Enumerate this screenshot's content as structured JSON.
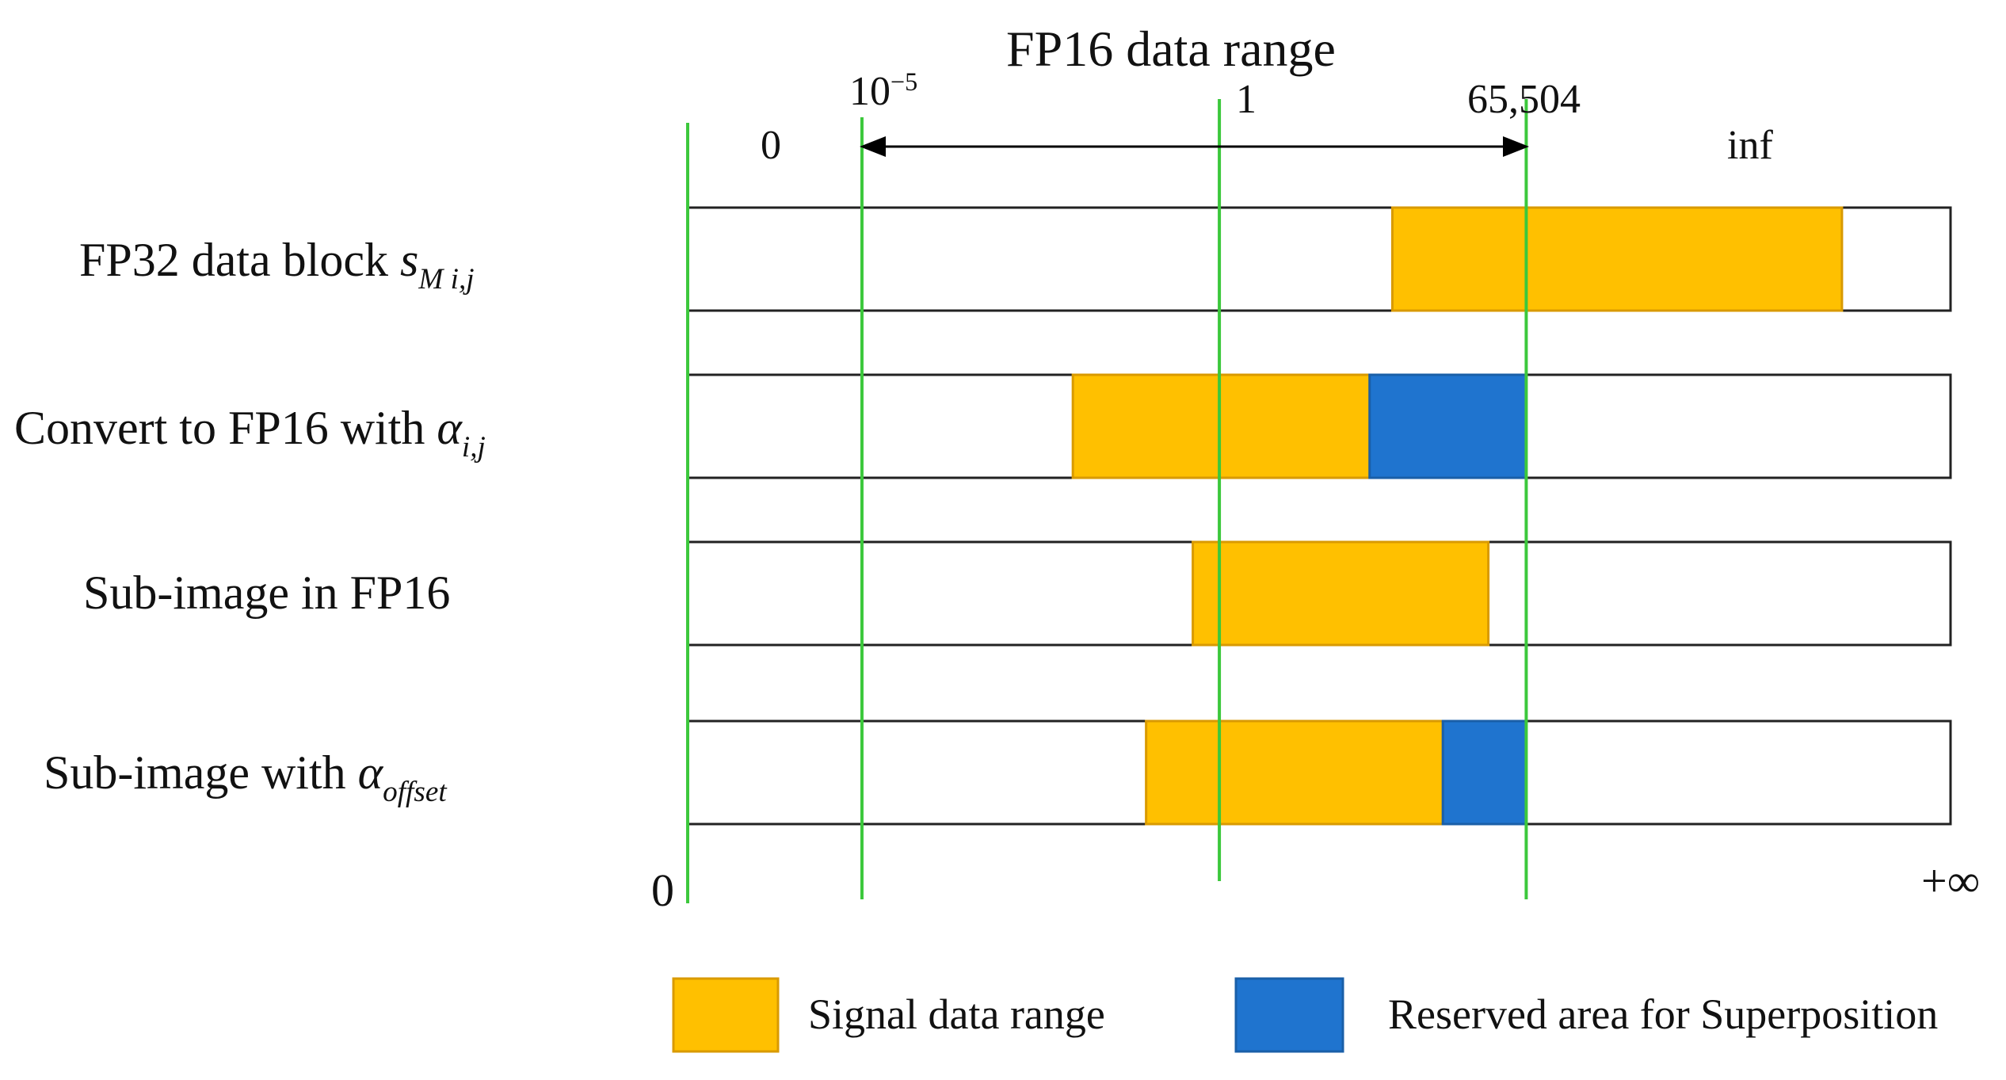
{
  "title": "FP16 data range",
  "top_markers": {
    "zero": "0",
    "small_base": "10",
    "small_exp": "−5",
    "one": "1",
    "max": "65,504",
    "inf": "inf"
  },
  "bottom_markers": {
    "zero": "0",
    "plus_inf": "+∞"
  },
  "rows": [
    {
      "prefix": "FP32 data block ",
      "symbol": "s",
      "subscript": "M i,j",
      "segments": [
        {
          "kind": "signal",
          "start": 0.558,
          "end": 0.914
        }
      ]
    },
    {
      "prefix": "Convert to FP16 with ",
      "symbol": "α",
      "subscript": "i,j",
      "segments": [
        {
          "kind": "signal",
          "start": 0.305,
          "end": 0.54
        },
        {
          "kind": "reserved",
          "start": 0.54,
          "end": 0.664
        }
      ]
    },
    {
      "prefix": "Sub-image in FP16",
      "symbol": "",
      "subscript": "",
      "segments": [
        {
          "kind": "signal",
          "start": 0.4,
          "end": 0.634
        }
      ]
    },
    {
      "prefix": "Sub-image with ",
      "symbol": "α",
      "subscript": "offset",
      "segments": [
        {
          "kind": "signal",
          "start": 0.363,
          "end": 0.598
        },
        {
          "kind": "reserved",
          "start": 0.598,
          "end": 0.664
        }
      ]
    }
  ],
  "guide_positions": {
    "zero": 0.0,
    "small": 0.138,
    "one": 0.421,
    "max": 0.664
  },
  "legend": [
    {
      "kind": "signal",
      "label": "Signal data range",
      "color": "#FFC000"
    },
    {
      "kind": "reserved",
      "label": "Reserved area for Superposition",
      "color": "#1F74CF"
    }
  ],
  "colors": {
    "guide": "#3CC83C",
    "signal": "#FFC000",
    "signal_edge": "#D99A00",
    "reserved": "#1F74CF"
  }
}
